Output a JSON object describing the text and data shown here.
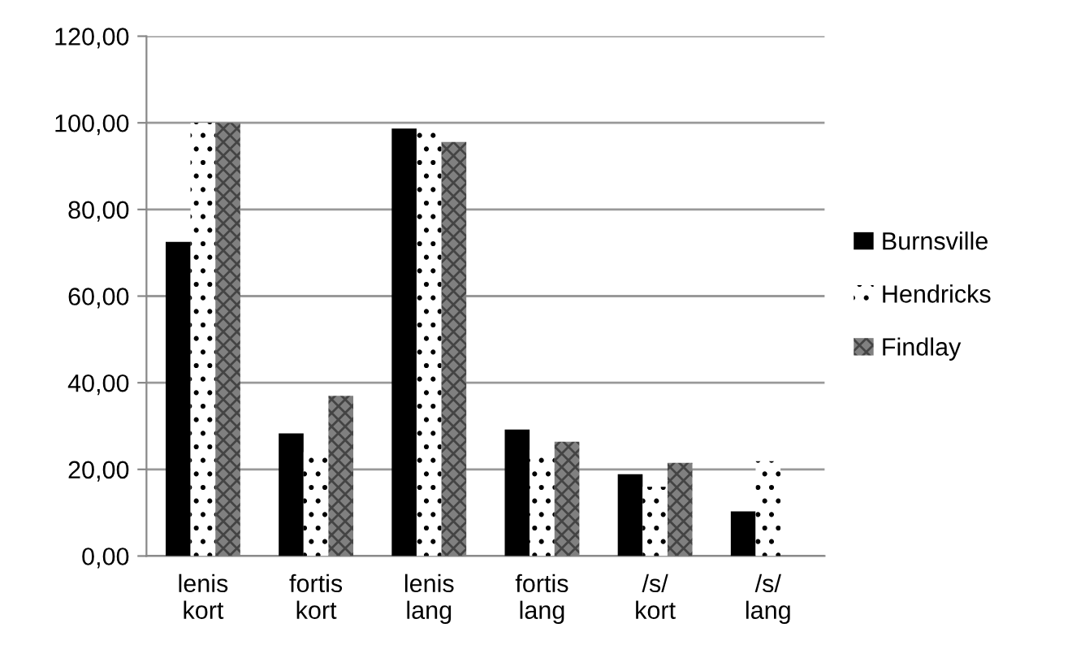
{
  "chart_data": {
    "type": "bar",
    "categories": [
      "lenis\nkort",
      "fortis\nkort",
      "lenis\nlang",
      "fortis\nlang",
      "/s/\nkort",
      "/s/\nlang"
    ],
    "series": [
      {
        "name": "Burnsville",
        "color": "#000000",
        "values": [
          72.5,
          28.3,
          98.7,
          29.2,
          18.9,
          10.3
        ]
      },
      {
        "name": "Hendricks",
        "color": "#ffffff",
        "values": [
          100,
          24,
          99.5,
          24.5,
          16,
          21.9
        ]
      },
      {
        "name": "Findlay",
        "color": "#808080",
        "values": [
          100,
          37,
          95.6,
          26.4,
          21.5,
          null
        ]
      }
    ],
    "ylim": [
      0,
      120
    ],
    "yticks": [
      {
        "value": 0,
        "label": "0,00"
      },
      {
        "value": 20,
        "label": "20,00"
      },
      {
        "value": 40,
        "label": "40,00"
      },
      {
        "value": 60,
        "label": "60,00"
      },
      {
        "value": 80,
        "label": "80,00"
      },
      {
        "value": 100,
        "label": "100,00"
      },
      {
        "value": 120,
        "label": "120,00"
      }
    ],
    "grid": "y",
    "legend": "right"
  }
}
